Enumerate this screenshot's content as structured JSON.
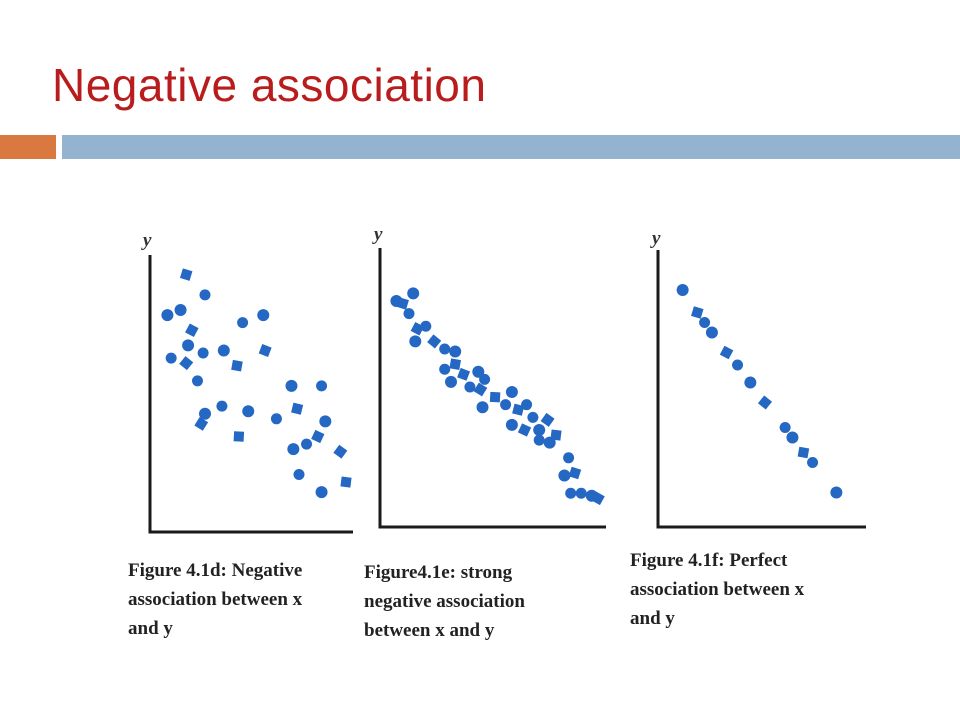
{
  "slide": {
    "title": "Negative association"
  },
  "chart_data": [
    {
      "type": "scatter",
      "ylabel": "y",
      "caption": [
        "Figure 4.1d: Negative",
        "association between x",
        "and y"
      ],
      "color": "#2468c4",
      "xlim": [
        0,
        10
      ],
      "ylim": [
        0,
        10
      ],
      "points": [
        [
          0.5,
          8.1
        ],
        [
          1.5,
          9.7
        ],
        [
          2.5,
          8.9
        ],
        [
          1.2,
          8.3
        ],
        [
          1.8,
          7.5
        ],
        [
          0.7,
          6.4
        ],
        [
          1.6,
          6.9
        ],
        [
          1.5,
          6.2
        ],
        [
          2.4,
          6.6
        ],
        [
          3.5,
          6.7
        ],
        [
          4.2,
          6.1
        ],
        [
          4.5,
          7.8
        ],
        [
          5.6,
          8.1
        ],
        [
          5.7,
          6.7
        ],
        [
          2.1,
          5.5
        ],
        [
          2.5,
          4.2
        ],
        [
          2.3,
          3.8
        ],
        [
          3.4,
          4.5
        ],
        [
          4.8,
          4.3
        ],
        [
          4.3,
          3.3
        ],
        [
          6.3,
          4.0
        ],
        [
          7.1,
          5.3
        ],
        [
          7.4,
          4.4
        ],
        [
          8.7,
          5.3
        ],
        [
          8.9,
          3.9
        ],
        [
          8.5,
          3.3
        ],
        [
          7.9,
          3.0
        ],
        [
          7.2,
          2.8
        ],
        [
          9.7,
          2.7
        ],
        [
          7.5,
          1.8
        ],
        [
          8.7,
          1.1
        ],
        [
          10.0,
          1.5
        ]
      ]
    },
    {
      "type": "scatter",
      "ylabel": "y",
      "caption": [
        "Figure4.1e: strong",
        "negative association",
        "between x and y"
      ],
      "color": "#2468c4",
      "xlim": [
        0,
        10
      ],
      "ylim": [
        0,
        10
      ],
      "points": [
        [
          0.4,
          8.5
        ],
        [
          0.7,
          8.4
        ],
        [
          1.0,
          8.0
        ],
        [
          1.2,
          8.8
        ],
        [
          1.4,
          7.4
        ],
        [
          1.8,
          7.5
        ],
        [
          1.3,
          6.9
        ],
        [
          2.2,
          6.9
        ],
        [
          2.7,
          6.6
        ],
        [
          3.2,
          6.5
        ],
        [
          3.2,
          6.0
        ],
        [
          2.7,
          5.8
        ],
        [
          3.0,
          5.3
        ],
        [
          3.6,
          5.6
        ],
        [
          3.9,
          5.1
        ],
        [
          4.3,
          5.7
        ],
        [
          4.4,
          5.0
        ],
        [
          4.6,
          5.4
        ],
        [
          4.5,
          4.3
        ],
        [
          5.1,
          4.7
        ],
        [
          5.6,
          4.4
        ],
        [
          5.9,
          4.9
        ],
        [
          6.2,
          4.2
        ],
        [
          6.6,
          4.4
        ],
        [
          5.9,
          3.6
        ],
        [
          6.5,
          3.4
        ],
        [
          6.9,
          3.9
        ],
        [
          7.2,
          3.4
        ],
        [
          7.6,
          3.8
        ],
        [
          7.2,
          3.0
        ],
        [
          7.7,
          2.9
        ],
        [
          8.0,
          3.2
        ],
        [
          8.6,
          2.3
        ],
        [
          8.4,
          1.6
        ],
        [
          8.9,
          1.7
        ],
        [
          9.2,
          0.9
        ],
        [
          9.7,
          0.8
        ],
        [
          10.0,
          0.7
        ],
        [
          8.7,
          0.9
        ]
      ]
    },
    {
      "type": "scatter",
      "ylabel": "y",
      "caption": [
        "Figure 4.1f: Perfect",
        "association between x",
        "and y"
      ],
      "color": "#2468c4",
      "xlim": [
        0,
        10
      ],
      "ylim": [
        0,
        10
      ],
      "points": [
        [
          0.8,
          9.0
        ],
        [
          1.6,
          8.1
        ],
        [
          2.0,
          7.7
        ],
        [
          2.4,
          7.3
        ],
        [
          3.2,
          6.5
        ],
        [
          3.8,
          6.0
        ],
        [
          4.5,
          5.3
        ],
        [
          5.3,
          4.5
        ],
        [
          6.4,
          3.5
        ],
        [
          6.8,
          3.1
        ],
        [
          7.4,
          2.5
        ],
        [
          7.9,
          2.1
        ],
        [
          9.2,
          0.9
        ]
      ]
    }
  ]
}
